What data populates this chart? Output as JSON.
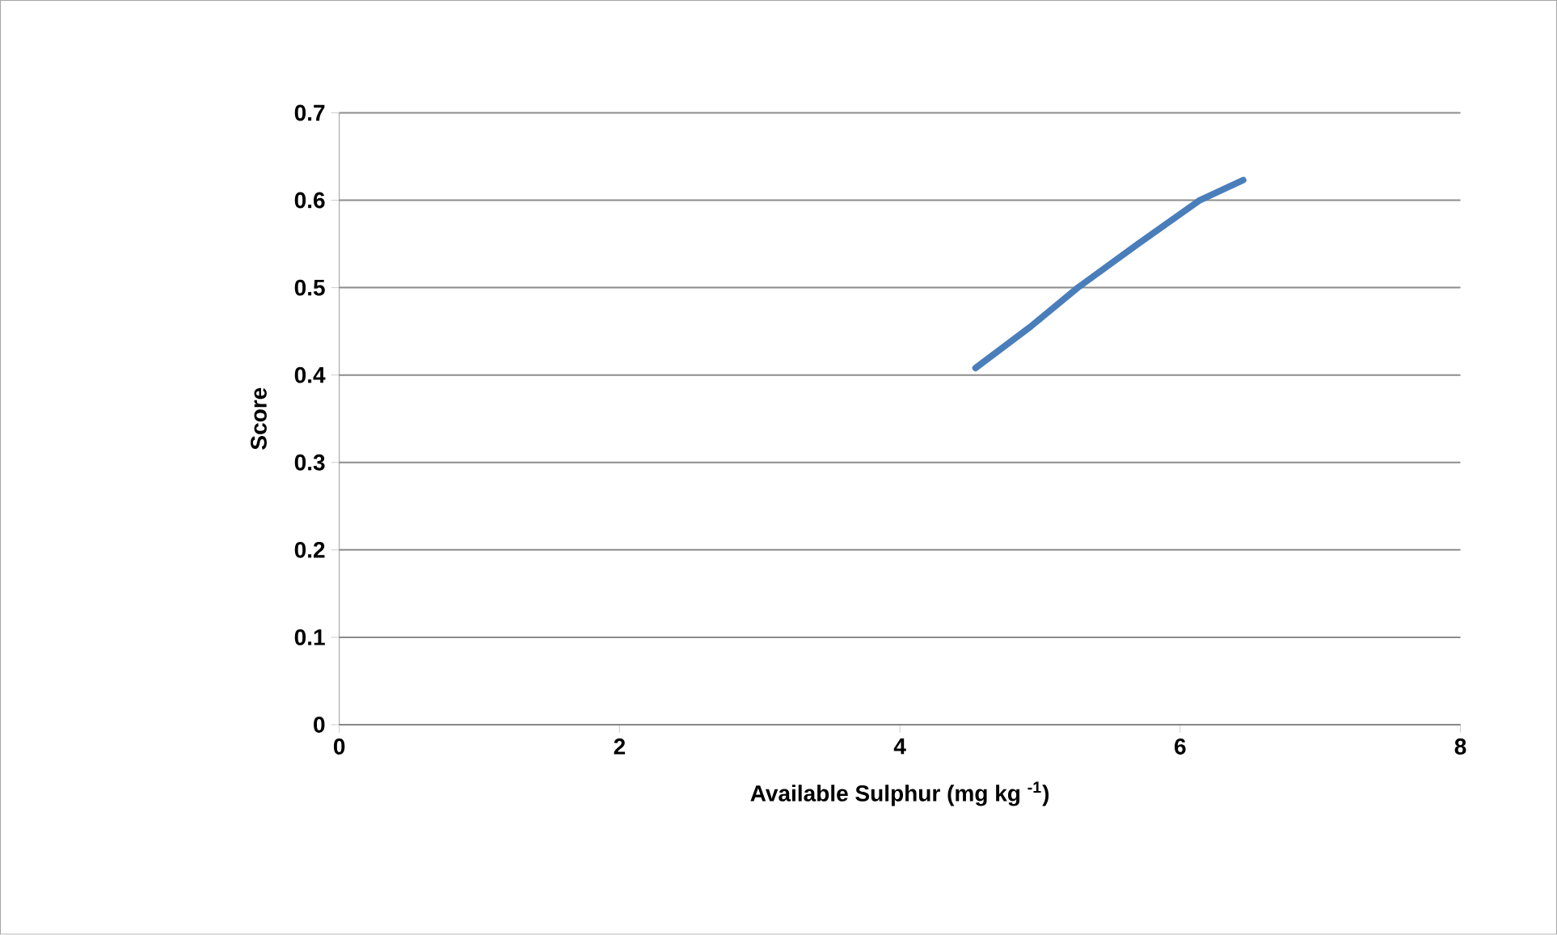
{
  "chart_data": {
    "type": "line",
    "xlabel": "Available Sulphur (mg kg $^{-1}$)",
    "ylabel": "Score",
    "series": [
      {
        "color": "#4a7ebb",
        "x": [
          4.54,
          4.93,
          5.27,
          5.7,
          6.14,
          6.45
        ],
        "values": [
          0.408,
          0.455,
          0.5,
          0.55,
          0.6,
          0.623
        ]
      }
    ],
    "xlim": [
      0,
      8
    ],
    "xticks": [
      0,
      2,
      4,
      6,
      8
    ],
    "ylim": [
      0,
      0.7
    ],
    "yticks": [
      0,
      0.1,
      0.2,
      0.3,
      0.4,
      0.5,
      0.6,
      0.7
    ],
    "grid": "y",
    "marker": "none",
    "line_style": "solid"
  }
}
